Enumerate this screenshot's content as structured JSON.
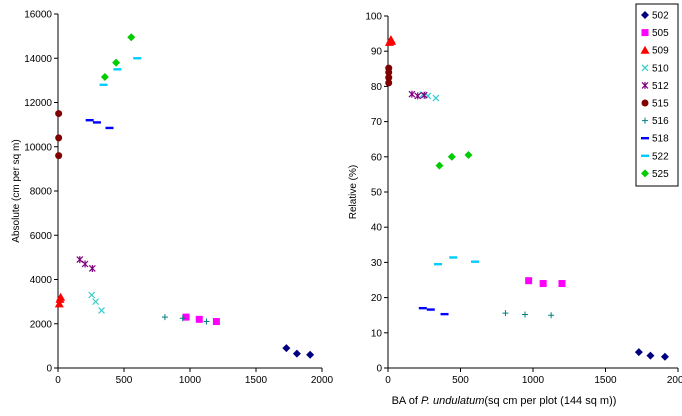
{
  "xlabel_prefix": "BA of ",
  "xlabel_species": "P. undulatum",
  "xlabel_suffix": "(sq cm per plot (144 sq m))",
  "series_styles": [
    {
      "name": "502",
      "marker": "diamond",
      "color": "#000080"
    },
    {
      "name": "505",
      "marker": "square",
      "color": "#FF00FF"
    },
    {
      "name": "509",
      "marker": "triangle",
      "color": "#FF0000"
    },
    {
      "name": "510",
      "marker": "x",
      "color": "#33CCCC"
    },
    {
      "name": "512",
      "marker": "star",
      "color": "#800080"
    },
    {
      "name": "515",
      "marker": "circle",
      "color": "#800000"
    },
    {
      "name": "516",
      "marker": "plus",
      "color": "#008080"
    },
    {
      "name": "518",
      "marker": "dash",
      "color": "#0000FF"
    },
    {
      "name": "522",
      "marker": "dash",
      "color": "#00CCFF"
    },
    {
      "name": "525",
      "marker": "diamond",
      "color": "#00CC00"
    }
  ],
  "chart_data": [
    {
      "type": "scatter",
      "ylabel": "Absolute (cm per sq m)",
      "xlim": [
        0,
        2000
      ],
      "ylim": [
        0,
        16000
      ],
      "xticks": [
        0,
        500,
        1000,
        1500,
        2000
      ],
      "yticks": [
        0,
        2000,
        4000,
        6000,
        8000,
        10000,
        12000,
        14000,
        16000
      ],
      "grid": false,
      "series": [
        {
          "name": "502",
          "points": [
            [
              1730,
              900
            ],
            [
              1810,
              650
            ],
            [
              1910,
              600
            ]
          ]
        },
        {
          "name": "505",
          "points": [
            [
              970,
              2300
            ],
            [
              1070,
              2200
            ],
            [
              1200,
              2100
            ]
          ]
        },
        {
          "name": "509",
          "points": [
            [
              10,
              2900
            ],
            [
              15,
              3100
            ],
            [
              20,
              3200
            ]
          ]
        },
        {
          "name": "510",
          "points": [
            [
              255,
              3300
            ],
            [
              285,
              3000
            ],
            [
              330,
              2600
            ]
          ]
        },
        {
          "name": "512",
          "points": [
            [
              165,
              4900
            ],
            [
              205,
              4700
            ],
            [
              260,
              4500
            ]
          ]
        },
        {
          "name": "515",
          "points": [
            [
              5,
              9600
            ],
            [
              5,
              10400
            ],
            [
              5,
              11500
            ]
          ]
        },
        {
          "name": "516",
          "points": [
            [
              810,
              2300
            ],
            [
              945,
              2250
            ],
            [
              1125,
              2100
            ]
          ]
        },
        {
          "name": "518",
          "points": [
            [
              240,
              11200
            ],
            [
              295,
              11100
            ],
            [
              390,
              10850
            ]
          ]
        },
        {
          "name": "522",
          "points": [
            [
              345,
              12800
            ],
            [
              450,
              13500
            ],
            [
              600,
              14000
            ]
          ]
        },
        {
          "name": "525",
          "points": [
            [
              355,
              13150
            ],
            [
              440,
              13800
            ],
            [
              555,
              14950
            ]
          ]
        }
      ]
    },
    {
      "type": "scatter",
      "ylabel": "Relative (%)",
      "xlim": [
        0,
        2000
      ],
      "ylim": [
        0,
        100
      ],
      "xticks": [
        0,
        500,
        1000,
        1500,
        2000
      ],
      "yticks": [
        0,
        10,
        20,
        30,
        40,
        50,
        60,
        70,
        80,
        90,
        100
      ],
      "grid": false,
      "legend": "top-right",
      "series": [
        {
          "name": "502",
          "points": [
            [
              1730,
              4.5
            ],
            [
              1810,
              3.5
            ],
            [
              1910,
              3.2
            ]
          ]
        },
        {
          "name": "505",
          "points": [
            [
              970,
              24.8
            ],
            [
              1070,
              24.0
            ],
            [
              1200,
              24.0
            ]
          ]
        },
        {
          "name": "509",
          "points": [
            [
              10,
              92.5
            ],
            [
              20,
              93.3
            ],
            [
              25,
              92.8
            ]
          ]
        },
        {
          "name": "510",
          "points": [
            [
              240,
              77.7
            ],
            [
              275,
              77.3
            ],
            [
              330,
              76.7
            ]
          ]
        },
        {
          "name": "512",
          "points": [
            [
              165,
              77.8
            ],
            [
              205,
              77.3
            ],
            [
              250,
              77.5
            ]
          ]
        },
        {
          "name": "515",
          "points": [
            [
              5,
              81.0
            ],
            [
              5,
              82.5
            ],
            [
              5,
              84.0
            ],
            [
              5,
              85.2
            ]
          ]
        },
        {
          "name": "516",
          "points": [
            [
              810,
              15.6
            ],
            [
              945,
              15.2
            ],
            [
              1125,
              15.0
            ]
          ]
        },
        {
          "name": "518",
          "points": [
            [
              240,
              17.0
            ],
            [
              295,
              16.6
            ],
            [
              390,
              15.3
            ]
          ]
        },
        {
          "name": "522",
          "points": [
            [
              345,
              29.5
            ],
            [
              450,
              31.4
            ],
            [
              600,
              30.2
            ]
          ]
        },
        {
          "name": "525",
          "points": [
            [
              355,
              57.5
            ],
            [
              440,
              60.0
            ],
            [
              555,
              60.5
            ]
          ]
        }
      ]
    }
  ]
}
